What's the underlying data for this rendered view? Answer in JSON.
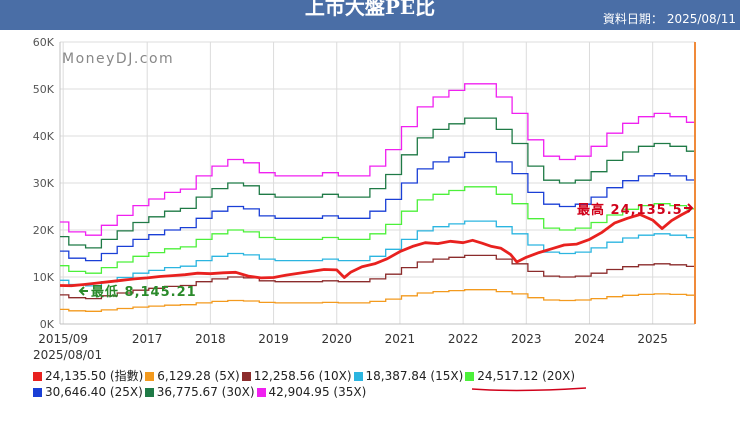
{
  "header": {
    "title": "上市大盤PE比",
    "date_label": "資料日期：",
    "date": "2025/08/11"
  },
  "watermark": "MoneyDJ.com",
  "legend": {
    "date": "2025/08/01",
    "items": [
      {
        "value": "24,135.50",
        "label": "(指數)",
        "color": "#e8211f"
      },
      {
        "value": "6,129.28",
        "label": "(5X)",
        "color": "#f39a1e"
      },
      {
        "value": "12,258.56",
        "label": "(10X)",
        "color": "#8b2b2b"
      },
      {
        "value": "18,387.84",
        "label": "(15X)",
        "color": "#2bb5e0"
      },
      {
        "value": "24,517.12",
        "label": "(20X)",
        "color": "#4cf03a"
      },
      {
        "value": "30,646.40",
        "label": "(25X)",
        "color": "#1a3fd6"
      },
      {
        "value": "36,775.67",
        "label": "(30X)",
        "color": "#1f7a46"
      },
      {
        "value": "42,904.95",
        "label": "(35X)",
        "color": "#f020f0"
      }
    ]
  },
  "annotations": {
    "max_text": "最高 24,135.5",
    "max_color": "#d0021b",
    "min_text": "最低 8,145.21",
    "min_color": "#2a8a2a"
  },
  "chart_data": {
    "type": "line",
    "title": "上市大盤PE比",
    "xlabel": "",
    "ylabel": "",
    "x_range": [
      2015.62,
      2025.67
    ],
    "ylim": [
      0,
      60000
    ],
    "y_ticks": [
      {
        "value": 0,
        "label": "0K"
      },
      {
        "value": 10000,
        "label": "10K"
      },
      {
        "value": 20000,
        "label": "20K"
      },
      {
        "value": 30000,
        "label": "30K"
      },
      {
        "value": 40000,
        "label": "40K"
      },
      {
        "value": 50000,
        "label": "50K"
      },
      {
        "value": 60000,
        "label": "60K"
      }
    ],
    "x_ticks": [
      {
        "value": 2015.67,
        "label": "2015/09"
      },
      {
        "value": 2017.0,
        "label": "2017"
      },
      {
        "value": 2018.0,
        "label": "2018"
      },
      {
        "value": 2019.0,
        "label": "2019"
      },
      {
        "value": 2020.0,
        "label": "2020"
      },
      {
        "value": 2021.0,
        "label": "2021"
      },
      {
        "value": 2022.0,
        "label": "2022"
      },
      {
        "value": 2023.0,
        "label": "2023"
      },
      {
        "value": 2024.0,
        "label": "2024"
      },
      {
        "value": 2025.0,
        "label": "2025"
      }
    ],
    "eps_x": [
      2015.62,
      2015.9,
      2016.15,
      2016.4,
      2016.65,
      2016.9,
      2017.15,
      2017.4,
      2017.65,
      2017.9,
      2018.15,
      2018.4,
      2018.65,
      2018.9,
      2019.15,
      2019.4,
      2019.65,
      2019.9,
      2020.15,
      2020.4,
      2020.65,
      2020.9,
      2021.15,
      2021.4,
      2021.65,
      2021.9,
      2022.15,
      2022.4,
      2022.65,
      2022.9,
      2023.15,
      2023.4,
      2023.65,
      2023.9,
      2024.15,
      2024.4,
      2024.65,
      2024.9,
      2025.15,
      2025.4,
      2025.67
    ],
    "eps_5x": [
      3100,
      2800,
      2700,
      3000,
      3300,
      3600,
      3800,
      4000,
      4100,
      4500,
      4800,
      5000,
      4900,
      4600,
      4500,
      4500,
      4500,
      4600,
      4500,
      4500,
      4800,
      5300,
      6000,
      6600,
      6900,
      7100,
      7300,
      7300,
      6900,
      6400,
      5600,
      5100,
      5000,
      5100,
      5400,
      5800,
      6100,
      6300,
      6400,
      6300,
      6129.28
    ],
    "series": [
      {
        "name": "指數",
        "values_x": [
          2015.62,
          2015.8,
          2016.0,
          2016.2,
          2016.4,
          2016.6,
          2016.8,
          2017.0,
          2017.2,
          2017.4,
          2017.6,
          2017.8,
          2018.0,
          2018.2,
          2018.4,
          2018.6,
          2018.8,
          2019.0,
          2019.2,
          2019.4,
          2019.6,
          2019.8,
          2020.0,
          2020.12,
          2020.22,
          2020.4,
          2020.6,
          2020.8,
          2021.0,
          2021.2,
          2021.4,
          2021.6,
          2021.8,
          2022.0,
          2022.15,
          2022.3,
          2022.45,
          2022.6,
          2022.75,
          2022.85,
          2023.0,
          2023.2,
          2023.4,
          2023.6,
          2023.8,
          2024.0,
          2024.2,
          2024.4,
          2024.6,
          2024.8,
          2025.0,
          2025.15,
          2025.3,
          2025.45,
          2025.58
        ],
        "values": [
          8200,
          8145.21,
          8400,
          8700,
          9000,
          9300,
          9600,
          9800,
          10100,
          10300,
          10500,
          10800,
          10700,
          10900,
          11000,
          10200,
          9800,
          9900,
          10400,
          10800,
          11200,
          11600,
          11500,
          9900,
          11000,
          12200,
          12800,
          13900,
          15400,
          16500,
          17300,
          17100,
          17600,
          17300,
          17800,
          17200,
          16500,
          16100,
          14800,
          13200,
          14200,
          15200,
          16000,
          16800,
          17000,
          18000,
          19500,
          21500,
          22500,
          23300,
          22100,
          20300,
          22000,
          23200,
          24135.5
        ]
      }
    ]
  }
}
